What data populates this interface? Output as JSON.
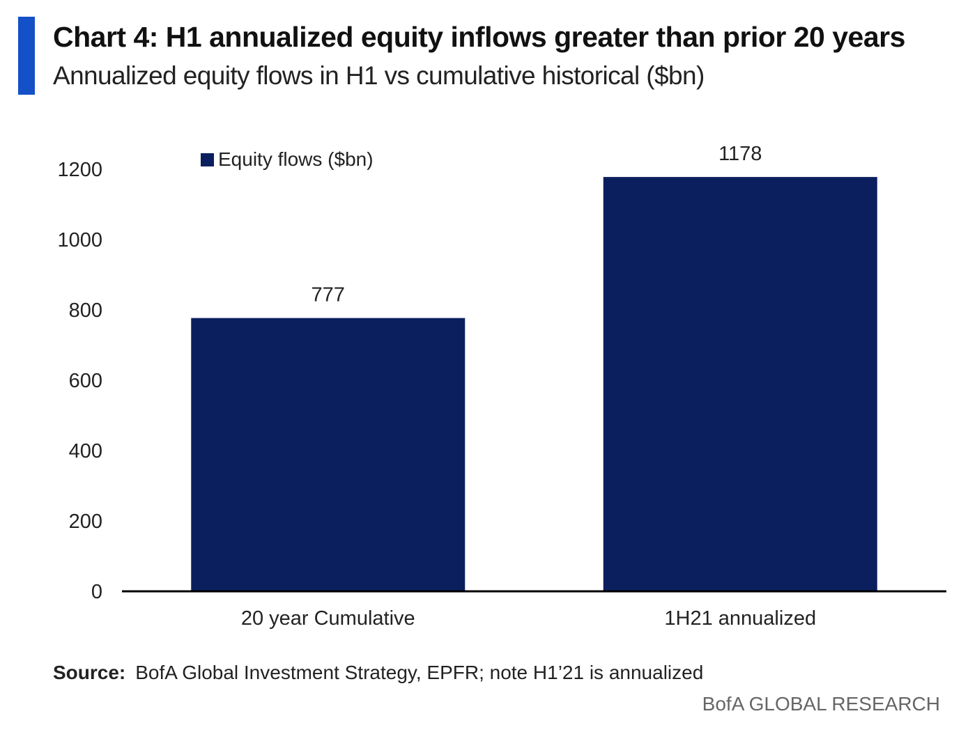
{
  "header": {
    "title": "Chart 4: H1 annualized equity inflows greater than prior 20 years",
    "subtitle": "Annualized equity flows in H1 vs cumulative historical ($bn)"
  },
  "colors": {
    "accent": "#1450c8",
    "bar": "#0b1f5e",
    "axis": "#000000"
  },
  "legend": {
    "label": "Equity flows ($bn)"
  },
  "chart_data": {
    "type": "bar",
    "categories": [
      "20 year Cumulative",
      "1H21 annualized"
    ],
    "series": [
      {
        "name": "Equity flows ($bn)",
        "values": [
          777,
          1178
        ]
      }
    ],
    "data_labels": [
      "777",
      "1178"
    ],
    "yticks": [
      0,
      200,
      400,
      600,
      800,
      1000,
      1200
    ],
    "ylim": [
      0,
      1200
    ],
    "grid": false,
    "legend_position": "top-left"
  },
  "footer": {
    "source_label": "Source:",
    "source_text": "BofA Global Investment Strategy, EPFR; note H1’21  is annualized",
    "brand": "BofA GLOBAL RESEARCH"
  }
}
